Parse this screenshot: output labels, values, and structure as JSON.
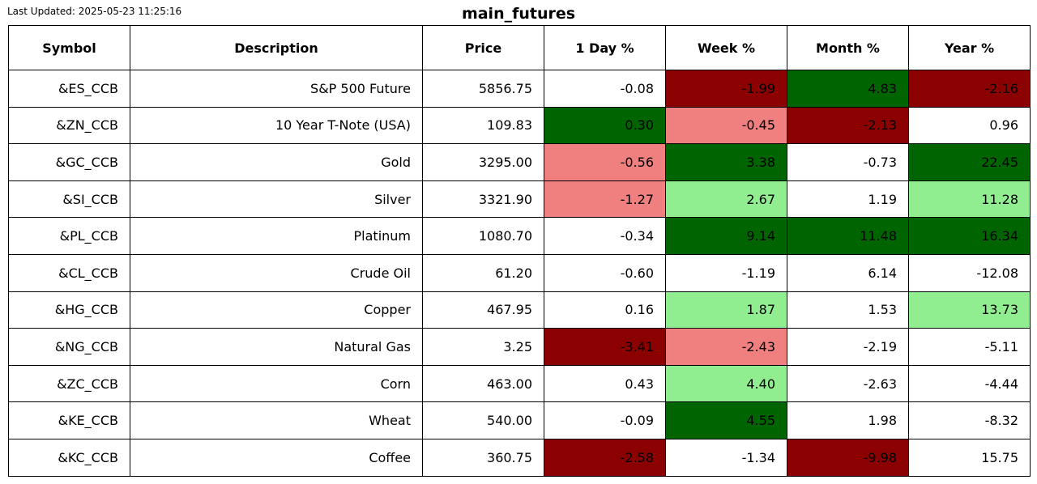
{
  "last_updated": "Last Updated: 2025-05-23 11:25:16",
  "title": "main_futures",
  "colors": {
    "strong_negative": "#8b0000",
    "negative": "#f08080",
    "positive": "#90ee90",
    "strong_positive": "#006400",
    "neutral": "#ffffff"
  },
  "chart_data": {
    "type": "table",
    "title": "main_futures",
    "columns": [
      "Symbol",
      "Description",
      "Price",
      "1 Day %",
      "Week %",
      "Month %",
      "Year %"
    ],
    "rows": [
      {
        "symbol": "&ES_CCB",
        "description": "S&P 500 Future",
        "price": "5856.75",
        "day": "-0.08",
        "week": "-1.99",
        "month": "4.83",
        "year": "-2.16",
        "day_color": "neutral",
        "week_color": "strong_negative",
        "month_color": "strong_positive",
        "year_color": "strong_negative"
      },
      {
        "symbol": "&ZN_CCB",
        "description": "10 Year T-Note (USA)",
        "price": "109.83",
        "day": "0.30",
        "week": "-0.45",
        "month": "-2.13",
        "year": "0.96",
        "day_color": "strong_positive",
        "week_color": "negative",
        "month_color": "strong_negative",
        "year_color": "neutral"
      },
      {
        "symbol": "&GC_CCB",
        "description": "Gold",
        "price": "3295.00",
        "day": "-0.56",
        "week": "3.38",
        "month": "-0.73",
        "year": "22.45",
        "day_color": "negative",
        "week_color": "strong_positive",
        "month_color": "neutral",
        "year_color": "strong_positive"
      },
      {
        "symbol": "&SI_CCB",
        "description": "Silver",
        "price": "3321.90",
        "day": "-1.27",
        "week": "2.67",
        "month": "1.19",
        "year": "11.28",
        "day_color": "negative",
        "week_color": "positive",
        "month_color": "neutral",
        "year_color": "positive"
      },
      {
        "symbol": "&PL_CCB",
        "description": "Platinum",
        "price": "1080.70",
        "day": "-0.34",
        "week": "9.14",
        "month": "11.48",
        "year": "16.34",
        "day_color": "neutral",
        "week_color": "strong_positive",
        "month_color": "strong_positive",
        "year_color": "strong_positive"
      },
      {
        "symbol": "&CL_CCB",
        "description": "Crude Oil",
        "price": "61.20",
        "day": "-0.60",
        "week": "-1.19",
        "month": "6.14",
        "year": "-12.08",
        "day_color": "neutral",
        "week_color": "neutral",
        "month_color": "neutral",
        "year_color": "neutral"
      },
      {
        "symbol": "&HG_CCB",
        "description": "Copper",
        "price": "467.95",
        "day": "0.16",
        "week": "1.87",
        "month": "1.53",
        "year": "13.73",
        "day_color": "neutral",
        "week_color": "positive",
        "month_color": "neutral",
        "year_color": "positive"
      },
      {
        "symbol": "&NG_CCB",
        "description": "Natural Gas",
        "price": "3.25",
        "day": "-3.41",
        "week": "-2.43",
        "month": "-2.19",
        "year": "-5.11",
        "day_color": "strong_negative",
        "week_color": "negative",
        "month_color": "neutral",
        "year_color": "neutral"
      },
      {
        "symbol": "&ZC_CCB",
        "description": "Corn",
        "price": "463.00",
        "day": "0.43",
        "week": "4.40",
        "month": "-2.63",
        "year": "-4.44",
        "day_color": "neutral",
        "week_color": "positive",
        "month_color": "neutral",
        "year_color": "neutral"
      },
      {
        "symbol": "&KE_CCB",
        "description": "Wheat",
        "price": "540.00",
        "day": "-0.09",
        "week": "4.55",
        "month": "1.98",
        "year": "-8.32",
        "day_color": "neutral",
        "week_color": "strong_positive",
        "month_color": "neutral",
        "year_color": "neutral"
      },
      {
        "symbol": "&KC_CCB",
        "description": "Coffee",
        "price": "360.75",
        "day": "-2.58",
        "week": "-1.34",
        "month": "-9.98",
        "year": "15.75",
        "day_color": "strong_negative",
        "week_color": "neutral",
        "month_color": "strong_negative",
        "year_color": "neutral"
      }
    ]
  }
}
